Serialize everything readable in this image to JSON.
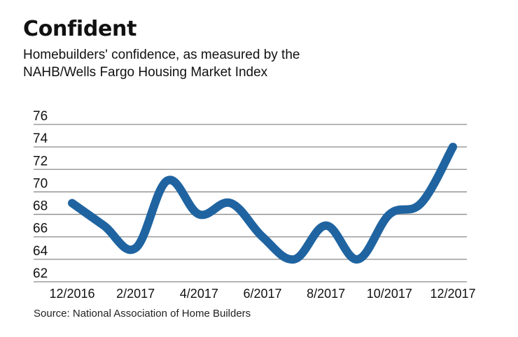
{
  "header": {
    "title": "Confident",
    "subtitle_line1": "Homebuilders' confidence, as measured by the",
    "subtitle_line2": "NAHB/Wells Fargo Housing Market Index"
  },
  "source": "Source: National Association of Home Builders",
  "colors": {
    "line": "#1f64a1",
    "grid": "#8a8a8a",
    "text": "#111111"
  },
  "chart_data": {
    "type": "line",
    "title": "Confident",
    "subtitle": "Homebuilders' confidence, as measured by the NAHB/Wells Fargo Housing Market Index",
    "xlabel": "",
    "ylabel": "",
    "x": [
      "12/2016",
      "1/2017",
      "2/2017",
      "3/2017",
      "4/2017",
      "5/2017",
      "6/2017",
      "7/2017",
      "8/2017",
      "9/2017",
      "10/2017",
      "11/2017",
      "12/2017"
    ],
    "series": [
      {
        "name": "NAHB/Wells Fargo Housing Market Index",
        "values": [
          69,
          67,
          65,
          71,
          68,
          69,
          66,
          64,
          67,
          64,
          68,
          69,
          74
        ]
      }
    ],
    "x_tick_labels": [
      "12/2016",
      "2/2017",
      "4/2017",
      "6/2017",
      "8/2017",
      "10/2017",
      "12/2017"
    ],
    "y_ticks": [
      62,
      64,
      66,
      68,
      70,
      72,
      74,
      76
    ],
    "ylim": [
      62,
      76
    ],
    "grid": true,
    "legend": "none",
    "source": "Source: National Association of Home Builders"
  }
}
